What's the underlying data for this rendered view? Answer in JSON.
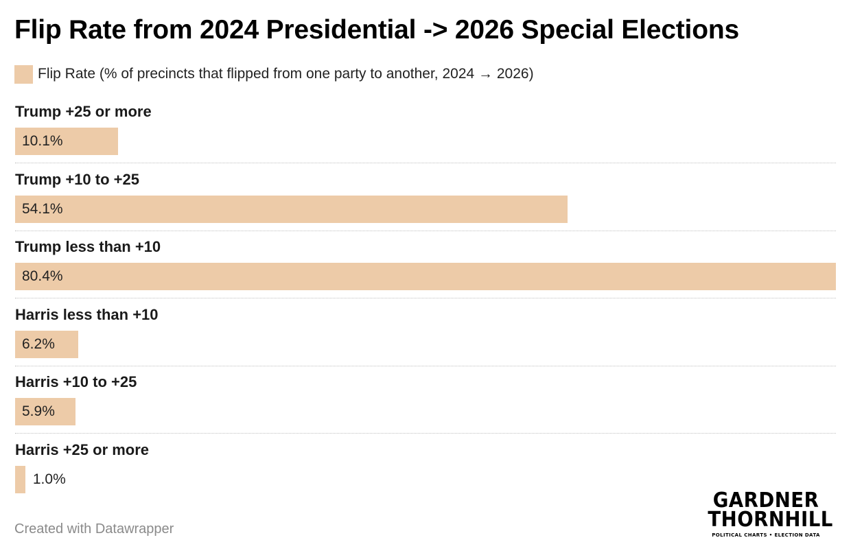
{
  "chart_data": {
    "type": "bar",
    "orientation": "horizontal",
    "title": "Flip Rate from 2024 Presidential -> 2026 Special Elections",
    "legend": {
      "label": "Flip Rate (% of precincts that flipped from one party to another, 2024 → 2026)",
      "placement": "top-left"
    },
    "categories": [
      "Trump +25 or more",
      "Trump +10 to +25",
      "Trump less than +10",
      "Harris less than +10",
      "Harris +10 to +25",
      "Harris +25 or more"
    ],
    "values": [
      10.1,
      54.1,
      80.4,
      6.2,
      5.9,
      1.0
    ],
    "value_labels": [
      "10.1%",
      "54.1%",
      "80.4%",
      "6.2%",
      "5.9%",
      "1.0%"
    ],
    "xlim": [
      0,
      80.4
    ],
    "grid": false,
    "color": "#edcba8"
  },
  "footer": {
    "credit": "Created with Datawrapper"
  },
  "logo": {
    "line1": "GARDNER",
    "line2": "THORNHILL",
    "tagline": "POLITICAL CHARTS • ELECTION DATA"
  }
}
